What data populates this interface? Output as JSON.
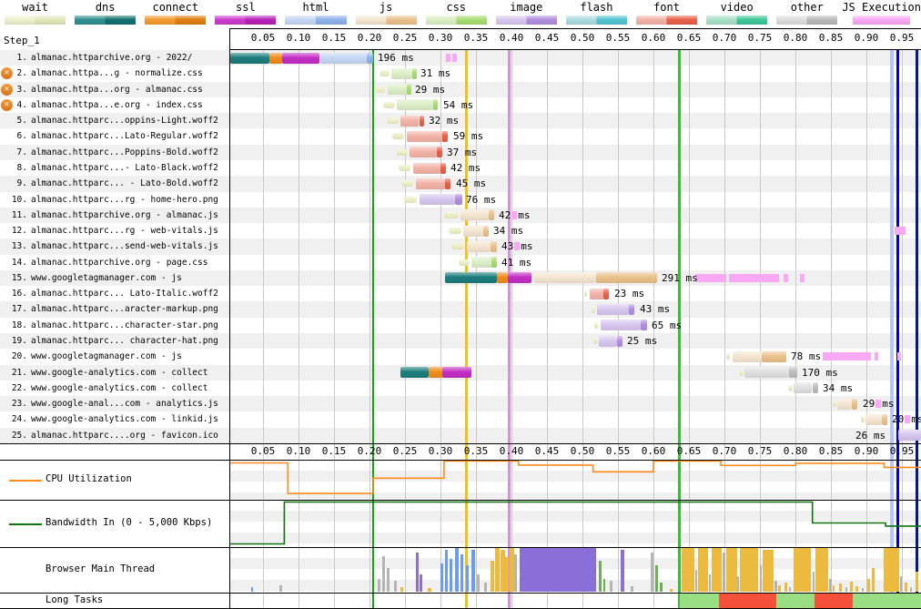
{
  "legend": {
    "items": [
      {
        "label": "wait",
        "c1": "#eef1cf",
        "c2": "#e3e8ba"
      },
      {
        "label": "dns",
        "c1": "#2f9090",
        "c2": "#15706e"
      },
      {
        "label": "connect",
        "c1": "#f29a2e",
        "c2": "#e07d12"
      },
      {
        "label": "ssl",
        "c1": "#cc3ccc",
        "c2": "#b821b8"
      },
      {
        "label": "html",
        "c1": "#c5d7f2",
        "c2": "#8fb2ea"
      },
      {
        "label": "js",
        "c1": "#f4e5d0",
        "c2": "#eac08b"
      },
      {
        "label": "css",
        "c1": "#dcefc6",
        "c2": "#a9dc72"
      },
      {
        "label": "image",
        "c1": "#d7c7ef",
        "c2": "#b18fe0"
      },
      {
        "label": "flash",
        "c1": "#acdbe0",
        "c2": "#54c4d2"
      },
      {
        "label": "font",
        "c1": "#f3b3a7",
        "c2": "#e8604a"
      },
      {
        "label": "video",
        "c1": "#a9e0c6",
        "c2": "#3fc79a"
      },
      {
        "label": "other",
        "c1": "#dddddd",
        "c2": "#b9b9b9"
      },
      {
        "label": "JS Execution",
        "c1": "#f9a9f4",
        "c2": "#f9a9f4",
        "narrow": true
      }
    ]
  },
  "panel": {
    "step": "Step_1",
    "cpu": "CPU Utilization",
    "bandwidth": "Bandwidth In (0 - 5,000 Kbps)",
    "main_thread": "Browser Main Thread",
    "long_tasks": "Long Tasks"
  },
  "axis": {
    "ticks": [
      "0.05",
      "0.10",
      "0.15",
      "0.20",
      "0.25",
      "0.30",
      "0.35",
      "0.40",
      "0.45",
      "0.50",
      "0.55",
      "0.60",
      "0.65",
      "0.70",
      "0.75",
      "0.80",
      "0.85",
      "0.90",
      "0.95"
    ]
  },
  "requests": [
    {
      "num": "1.",
      "name": "almanac.httparchive.org - 2022/",
      "err": false,
      "label": "196 ms",
      "tick": false,
      "segs": [
        [
          "dns",
          0.004,
          0.059
        ],
        [
          "con",
          0.059,
          0.077
        ],
        [
          "ssl",
          0.077,
          0.129
        ],
        [
          "html1",
          0.131,
          0.196
        ],
        [
          "html2",
          0.196,
          0.205
        ]
      ],
      "execs": [
        [
          0.308,
          0.314
        ],
        [
          0.317,
          0.323
        ]
      ]
    },
    {
      "num": "2.",
      "name": "almanac.httpa...g - normalize.css",
      "err": true,
      "label": "31 ms",
      "tick": false,
      "segs": [
        [
          "wait",
          0.214,
          0.228
        ],
        [
          "css1",
          0.231,
          0.26
        ],
        [
          "css2",
          0.26,
          0.266
        ]
      ],
      "execs": []
    },
    {
      "num": "3.",
      "name": "almanac.httpa...org - almanac.css",
      "err": true,
      "label": "29 ms",
      "tick": false,
      "segs": [
        [
          "wait",
          0.208,
          0.222
        ],
        [
          "css1",
          0.225,
          0.252
        ],
        [
          "css2",
          0.252,
          0.258
        ]
      ],
      "execs": []
    },
    {
      "num": "4.",
      "name": "almanac.httpa...e.org - index.css",
      "err": true,
      "label": "54 ms",
      "tick": false,
      "segs": [
        [
          "wait",
          0.219,
          0.236
        ],
        [
          "css1",
          0.239,
          0.29
        ],
        [
          "css2",
          0.29,
          0.297
        ]
      ],
      "execs": []
    },
    {
      "num": "5.",
      "name": "almanac.httparc...oppins-Light.woff2",
      "err": false,
      "label": "32 ms",
      "tick": false,
      "segs": [
        [
          "wait",
          0.224,
          0.241
        ],
        [
          "font1",
          0.244,
          0.27
        ],
        [
          "font2",
          0.27,
          0.277
        ]
      ],
      "execs": []
    },
    {
      "num": "6.",
      "name": "almanac.httparc...Lato-Regular.woff2",
      "err": false,
      "label": "59 ms",
      "tick": false,
      "segs": [
        [
          "wait",
          0.232,
          0.249
        ],
        [
          "font1",
          0.252,
          0.303
        ],
        [
          "font2",
          0.303,
          0.311
        ]
      ],
      "execs": []
    },
    {
      "num": "7.",
      "name": "almanac.httparc...Poppins-Bold.woff2",
      "err": false,
      "label": "37 ms",
      "tick": false,
      "segs": [
        [
          "wait",
          0.237,
          0.254
        ],
        [
          "font1",
          0.257,
          0.295
        ],
        [
          "font2",
          0.295,
          0.303
        ]
      ],
      "execs": []
    },
    {
      "num": "8.",
      "name": "almanac.httparc...- Lato-Black.woff2",
      "err": false,
      "label": "42 ms",
      "tick": false,
      "segs": [
        [
          "wait",
          0.241,
          0.258
        ],
        [
          "font1",
          0.261,
          0.3
        ],
        [
          "font2",
          0.3,
          0.308
        ]
      ],
      "execs": []
    },
    {
      "num": "9.",
      "name": "almanac.httparc... - Lato-Bold.woff2",
      "err": false,
      "label": "45 ms",
      "tick": false,
      "segs": [
        [
          "wait",
          0.245,
          0.262
        ],
        [
          "font1",
          0.265,
          0.307
        ],
        [
          "font2",
          0.307,
          0.315
        ]
      ],
      "execs": []
    },
    {
      "num": "10.",
      "name": "almanac.httparc...rg - home-hero.png",
      "err": false,
      "label": "76 ms",
      "tick": false,
      "segs": [
        [
          "wait",
          0.249,
          0.267
        ],
        [
          "img1",
          0.27,
          0.32
        ],
        [
          "img2",
          0.32,
          0.33
        ]
      ],
      "execs": []
    },
    {
      "num": "11.",
      "name": "almanac.httparchive.org - almanac.js",
      "err": false,
      "label": "42 ms",
      "tick": true,
      "segs": [
        [
          "wait",
          0.305,
          0.325
        ],
        [
          "js1",
          0.328,
          0.368
        ],
        [
          "js2",
          0.368,
          0.376
        ]
      ],
      "execs": []
    },
    {
      "num": "12.",
      "name": "almanac.httparc...rg - web-vitals.js",
      "err": false,
      "label": "34 ms",
      "tick": false,
      "segs": [
        [
          "wait",
          0.311,
          0.329
        ],
        [
          "js1",
          0.332,
          0.36
        ],
        [
          "js2",
          0.36,
          0.368
        ]
      ],
      "execs": [
        [
          0.94,
          0.956
        ]
      ]
    },
    {
      "num": "13.",
      "name": "almanac.httparc...send-web-vitals.js",
      "err": false,
      "label": "43 ms",
      "tick": true,
      "segs": [
        [
          "wait",
          0.316,
          0.334
        ],
        [
          "js1",
          0.337,
          0.37
        ],
        [
          "js2",
          0.37,
          0.379
        ]
      ],
      "execs": []
    },
    {
      "num": "14.",
      "name": "almanac.httparchive.org - page.css",
      "err": false,
      "label": "41 ms",
      "tick": false,
      "segs": [
        [
          "wait",
          0.325,
          0.34
        ],
        [
          "css1",
          0.343,
          0.372
        ],
        [
          "css2",
          0.372,
          0.38
        ]
      ],
      "execs": []
    },
    {
      "num": "15.",
      "name": "www.googletagmanager.com - js",
      "err": false,
      "label": "291 ms",
      "tick": false,
      "segs": [
        [
          "dns",
          0.306,
          0.379
        ],
        [
          "con",
          0.379,
          0.395
        ],
        [
          "ssl",
          0.395,
          0.428
        ],
        [
          "js1",
          0.432,
          0.519
        ],
        [
          "js2",
          0.519,
          0.605
        ]
      ],
      "execs": [
        [
          0.659,
          0.703
        ],
        [
          0.707,
          0.778
        ],
        [
          0.783,
          0.789
        ],
        [
          0.806,
          0.812
        ]
      ]
    },
    {
      "num": "16.",
      "name": "almanac.httparc... Lato-Italic.woff2",
      "err": false,
      "label": "23 ms",
      "tick": false,
      "segs": [
        [
          "wait",
          0.503,
          0.507
        ],
        [
          "font1",
          0.51,
          0.53
        ],
        [
          "font2",
          0.53,
          0.538
        ]
      ],
      "execs": []
    },
    {
      "num": "17.",
      "name": "almanac.httparc...aracter-markup.png",
      "err": false,
      "label": "43 ms",
      "tick": false,
      "segs": [
        [
          "wait",
          0.513,
          0.518
        ],
        [
          "img1",
          0.521,
          0.566
        ],
        [
          "img2",
          0.566,
          0.574
        ]
      ],
      "execs": []
    },
    {
      "num": "18.",
      "name": "almanac.httparc...character-star.png",
      "err": false,
      "label": "65 ms",
      "tick": false,
      "segs": [
        [
          "wait",
          0.517,
          0.522
        ],
        [
          "img1",
          0.525,
          0.582
        ],
        [
          "img2",
          0.582,
          0.591
        ]
      ],
      "execs": []
    },
    {
      "num": "19.",
      "name": "almanac.httparc... character-hat.png",
      "err": false,
      "label": "25 ms",
      "tick": false,
      "segs": [
        [
          "wait",
          0.515,
          0.52
        ],
        [
          "img1",
          0.523,
          0.549
        ],
        [
          "img2",
          0.549,
          0.557
        ]
      ],
      "execs": []
    },
    {
      "num": "20.",
      "name": "www.googletagmanager.com - js",
      "err": false,
      "label": "78 ms",
      "tick": false,
      "segs": [
        [
          "wait",
          0.703,
          0.708
        ],
        [
          "js1",
          0.711,
          0.753
        ],
        [
          "js2",
          0.753,
          0.787
        ]
      ],
      "execs": [
        [
          0.839,
          0.907
        ],
        [
          0.912,
          0.917
        ],
        [
          0.943,
          0.948
        ]
      ]
    },
    {
      "num": "21.",
      "name": "www.google-analytics.com - collect",
      "err": false,
      "label": "170 ms",
      "tick": false,
      "segs": [
        [
          "dns",
          0.243,
          0.283
        ],
        [
          "con",
          0.283,
          0.303
        ],
        [
          "ssl",
          0.303,
          0.344
        ],
        [
          "wait",
          0.72,
          0.726
        ],
        [
          "oth1",
          0.728,
          0.791
        ],
        [
          "oth2",
          0.791,
          0.803
        ]
      ],
      "execs": []
    },
    {
      "num": "22.",
      "name": "www.google-analytics.com - collect",
      "err": false,
      "label": "34 ms",
      "tick": false,
      "segs": [
        [
          "wait",
          0.79,
          0.796
        ],
        [
          "oth1",
          0.798,
          0.824
        ],
        [
          "oth2",
          0.824,
          0.832
        ]
      ],
      "execs": []
    },
    {
      "num": "23.",
      "name": "www.google-anal...com - analytics.js",
      "err": false,
      "label": "29 ms",
      "tick": true,
      "segs": [
        [
          "wait",
          0.852,
          0.857
        ],
        [
          "js1",
          0.859,
          0.88
        ],
        [
          "js2",
          0.88,
          0.888
        ]
      ],
      "execs": []
    },
    {
      "num": "24.",
      "name": "www.google-analytics.com - linkid.js",
      "err": false,
      "label": "20 ms",
      "tick": true,
      "segs": [
        [
          "wait",
          0.892,
          0.897
        ],
        [
          "js1",
          0.899,
          0.922
        ],
        [
          "js2",
          0.922,
          0.93
        ]
      ],
      "execs": []
    },
    {
      "num": "25.",
      "name": "almanac.httparc....org - favicon.ico",
      "err": false,
      "label": "26 ms",
      "tick": false,
      "labelT": 0.878,
      "segs": [
        [
          "img1",
          0.945,
          0.977
        ]
      ],
      "execs": []
    }
  ],
  "markers": [
    {
      "t": 0.205,
      "color": "#0daa0d",
      "w": 2
    },
    {
      "t": 0.337,
      "color": "#f2c118",
      "w": 3
    },
    {
      "t": 0.397,
      "color": "#d98fd9",
      "w": 3
    },
    {
      "t": 0.637,
      "color": "#2fc42f",
      "w": 3
    },
    {
      "t": 0.936,
      "color": "#b9c5f4",
      "w": 4
    },
    {
      "t": 0.944,
      "color": "#0000d6",
      "w": 3
    },
    {
      "t": 0.971,
      "color": "#001a8c",
      "w": 3
    }
  ],
  "cpu_line": {
    "color": "#ff8c1a",
    "steps": [
      [
        0,
        6
      ],
      [
        0.085,
        6
      ],
      [
        0.085,
        88
      ],
      [
        0.205,
        88
      ],
      [
        0.205,
        47
      ],
      [
        0.305,
        47
      ],
      [
        0.305,
        1
      ],
      [
        0.41,
        1
      ],
      [
        0.41,
        12
      ],
      [
        0.515,
        12
      ],
      [
        0.515,
        30
      ],
      [
        0.6,
        30
      ],
      [
        0.6,
        1
      ],
      [
        0.695,
        1
      ],
      [
        0.695,
        13
      ],
      [
        0.8,
        13
      ],
      [
        0.8,
        7
      ],
      [
        0.925,
        7
      ],
      [
        0.925,
        18
      ],
      [
        0.98,
        18
      ]
    ]
  },
  "bandwidth_line": {
    "color": "#0f730f",
    "steps": [
      [
        0,
        97
      ],
      [
        0.08,
        97
      ],
      [
        0.08,
        3
      ],
      [
        0.824,
        3
      ],
      [
        0.824,
        50
      ],
      [
        0.927,
        50
      ],
      [
        0.927,
        57
      ],
      [
        0.98,
        57
      ]
    ]
  },
  "spike_colors": {
    "g": "#b4b4b4",
    "b": "#6d9ce8",
    "p": "#8b6fd8",
    "o": "#ecba3e",
    "gr": "#6fae58"
  },
  "main_thread_spikes": [
    [
      0.033,
      0.036,
      10,
      "b"
    ],
    [
      0.073,
      0.077,
      14,
      "g"
    ],
    [
      0.212,
      0.216,
      30,
      "g"
    ],
    [
      0.218,
      0.222,
      82,
      "g"
    ],
    [
      0.224,
      0.228,
      55,
      "g"
    ],
    [
      0.234,
      0.238,
      25,
      "g"
    ],
    [
      0.244,
      0.248,
      10,
      "o"
    ],
    [
      0.266,
      0.27,
      90,
      "p"
    ],
    [
      0.271,
      0.275,
      40,
      "p"
    ],
    [
      0.282,
      0.287,
      8,
      "o"
    ],
    [
      0.3,
      0.304,
      65,
      "b"
    ],
    [
      0.306,
      0.31,
      95,
      "b"
    ],
    [
      0.313,
      0.317,
      75,
      "b"
    ],
    [
      0.32,
      0.325,
      100,
      "b"
    ],
    [
      0.328,
      0.332,
      85,
      "b"
    ],
    [
      0.336,
      0.34,
      60,
      "b"
    ],
    [
      0.343,
      0.348,
      95,
      "b"
    ],
    [
      0.351,
      0.355,
      40,
      "g"
    ],
    [
      0.362,
      0.366,
      20,
      "g"
    ],
    [
      0.37,
      0.375,
      70,
      "o"
    ],
    [
      0.377,
      0.383,
      100,
      "o"
    ],
    [
      0.384,
      0.39,
      95,
      "o"
    ],
    [
      0.391,
      0.396,
      80,
      "o"
    ],
    [
      0.397,
      0.403,
      100,
      "o"
    ],
    [
      0.404,
      0.408,
      85,
      "g"
    ],
    [
      0.412,
      0.52,
      100,
      "p"
    ],
    [
      0.523,
      0.527,
      70,
      "gr"
    ],
    [
      0.529,
      0.532,
      30,
      "gr"
    ],
    [
      0.538,
      0.542,
      25,
      "g"
    ],
    [
      0.554,
      0.559,
      95,
      "p"
    ],
    [
      0.568,
      0.572,
      12,
      "g"
    ],
    [
      0.596,
      0.6,
      90,
      "g"
    ],
    [
      0.602,
      0.606,
      60,
      "gr"
    ],
    [
      0.609,
      0.613,
      20,
      "gr"
    ],
    [
      0.623,
      0.627,
      6,
      "o"
    ],
    [
      0.64,
      0.658,
      100,
      "o"
    ],
    [
      0.659,
      0.662,
      50,
      "g"
    ],
    [
      0.663,
      0.677,
      100,
      "o"
    ],
    [
      0.678,
      0.681,
      40,
      "g"
    ],
    [
      0.682,
      0.696,
      100,
      "o"
    ],
    [
      0.697,
      0.701,
      90,
      "g"
    ],
    [
      0.702,
      0.717,
      100,
      "o"
    ],
    [
      0.718,
      0.721,
      35,
      "g"
    ],
    [
      0.722,
      0.748,
      100,
      "o"
    ],
    [
      0.75,
      0.753,
      60,
      "g"
    ],
    [
      0.754,
      0.769,
      95,
      "o"
    ],
    [
      0.77,
      0.774,
      25,
      "g"
    ],
    [
      0.776,
      0.78,
      15,
      "o"
    ],
    [
      0.785,
      0.789,
      20,
      "o"
    ],
    [
      0.791,
      0.794,
      10,
      "g"
    ],
    [
      0.798,
      0.822,
      100,
      "o"
    ],
    [
      0.824,
      0.827,
      45,
      "g"
    ],
    [
      0.828,
      0.846,
      100,
      "o"
    ],
    [
      0.847,
      0.851,
      30,
      "g"
    ],
    [
      0.853,
      0.856,
      15,
      "o"
    ],
    [
      0.862,
      0.866,
      18,
      "o"
    ],
    [
      0.87,
      0.873,
      10,
      "g"
    ],
    [
      0.877,
      0.881,
      22,
      "o"
    ],
    [
      0.884,
      0.888,
      12,
      "o"
    ],
    [
      0.894,
      0.897,
      8,
      "g"
    ],
    [
      0.901,
      0.905,
      30,
      "o"
    ],
    [
      0.908,
      0.912,
      55,
      "o"
    ],
    [
      0.924,
      0.946,
      100,
      "o"
    ],
    [
      0.948,
      0.951,
      35,
      "g"
    ],
    [
      0.954,
      0.958,
      20,
      "o"
    ],
    [
      0.962,
      0.965,
      10,
      "g"
    ],
    [
      0.969,
      0.973,
      45,
      "o"
    ]
  ],
  "long_task_colors": {
    "green": "#9ade84",
    "red": "#f4503a"
  },
  "long_tasks": [
    [
      0.637,
      0.692,
      "green"
    ],
    [
      0.692,
      0.773,
      "red"
    ],
    [
      0.773,
      0.827,
      "green"
    ],
    [
      0.827,
      0.881,
      "red"
    ],
    [
      0.881,
      0.977,
      "green"
    ]
  ]
}
